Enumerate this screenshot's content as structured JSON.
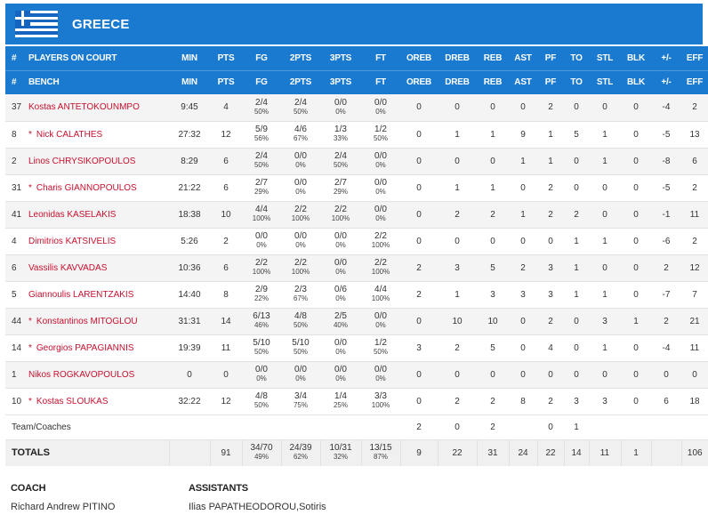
{
  "team": {
    "name": "GREECE"
  },
  "headers_on_court": {
    "num": "#",
    "players": "PLAYERS ON COURT",
    "cols": [
      "MIN",
      "PTS",
      "FG",
      "2PTS",
      "3PTS",
      "FT",
      "OREB",
      "DREB",
      "REB",
      "AST",
      "PF",
      "TO",
      "STL",
      "BLK",
      "+/-",
      "EFF"
    ]
  },
  "headers_bench": {
    "num": "#",
    "players": "BENCH",
    "cols": [
      "MIN",
      "PTS",
      "FG",
      "2PTS",
      "3PTS",
      "FT",
      "OREB",
      "DREB",
      "REB",
      "AST",
      "PF",
      "TO",
      "STL",
      "BLK",
      "+/-",
      "EFF"
    ]
  },
  "players": [
    {
      "num": "37",
      "name": "Kostas ANTETOKOUNMPO",
      "starter": false,
      "min": "9:45",
      "pts": "4",
      "fg": "2/4",
      "fg_pct": "50%",
      "p2": "2/4",
      "p2_pct": "50%",
      "p3": "0/0",
      "p3_pct": "0%",
      "ft": "0/0",
      "ft_pct": "0%",
      "oreb": "0",
      "dreb": "0",
      "reb": "0",
      "ast": "0",
      "pf": "2",
      "to": "0",
      "stl": "0",
      "blk": "0",
      "pm": "-4",
      "eff": "2"
    },
    {
      "num": "8",
      "name": "Nick CALATHES",
      "starter": true,
      "min": "27:32",
      "pts": "12",
      "fg": "5/9",
      "fg_pct": "56%",
      "p2": "4/6",
      "p2_pct": "67%",
      "p3": "1/3",
      "p3_pct": "33%",
      "ft": "1/2",
      "ft_pct": "50%",
      "oreb": "0",
      "dreb": "1",
      "reb": "1",
      "ast": "9",
      "pf": "1",
      "to": "5",
      "stl": "1",
      "blk": "0",
      "pm": "-5",
      "eff": "13"
    },
    {
      "num": "2",
      "name": "Linos CHRYSIKOPOULOS",
      "starter": false,
      "min": "8:29",
      "pts": "6",
      "fg": "2/4",
      "fg_pct": "50%",
      "p2": "0/0",
      "p2_pct": "0%",
      "p3": "2/4",
      "p3_pct": "50%",
      "ft": "0/0",
      "ft_pct": "0%",
      "oreb": "0",
      "dreb": "0",
      "reb": "0",
      "ast": "1",
      "pf": "1",
      "to": "0",
      "stl": "1",
      "blk": "0",
      "pm": "-8",
      "eff": "6"
    },
    {
      "num": "31",
      "name": "Charis GIANNOPOULOS",
      "starter": true,
      "min": "21:22",
      "pts": "6",
      "fg": "2/7",
      "fg_pct": "29%",
      "p2": "0/0",
      "p2_pct": "0%",
      "p3": "2/7",
      "p3_pct": "29%",
      "ft": "0/0",
      "ft_pct": "0%",
      "oreb": "0",
      "dreb": "1",
      "reb": "1",
      "ast": "0",
      "pf": "2",
      "to": "0",
      "stl": "0",
      "blk": "0",
      "pm": "-5",
      "eff": "2"
    },
    {
      "num": "41",
      "name": "Leonidas KASELAKIS",
      "starter": false,
      "min": "18:38",
      "pts": "10",
      "fg": "4/4",
      "fg_pct": "100%",
      "p2": "2/2",
      "p2_pct": "100%",
      "p3": "2/2",
      "p3_pct": "100%",
      "ft": "0/0",
      "ft_pct": "0%",
      "oreb": "0",
      "dreb": "2",
      "reb": "2",
      "ast": "1",
      "pf": "2",
      "to": "2",
      "stl": "0",
      "blk": "0",
      "pm": "-1",
      "eff": "11"
    },
    {
      "num": "4",
      "name": "Dimitrios KATSIVELIS",
      "starter": false,
      "min": "5:26",
      "pts": "2",
      "fg": "0/0",
      "fg_pct": "0%",
      "p2": "0/0",
      "p2_pct": "0%",
      "p3": "0/0",
      "p3_pct": "0%",
      "ft": "2/2",
      "ft_pct": "100%",
      "oreb": "0",
      "dreb": "0",
      "reb": "0",
      "ast": "0",
      "pf": "0",
      "to": "1",
      "stl": "1",
      "blk": "0",
      "pm": "-6",
      "eff": "2"
    },
    {
      "num": "6",
      "name": "Vassilis KAVVADAS",
      "starter": false,
      "min": "10:36",
      "pts": "6",
      "fg": "2/2",
      "fg_pct": "100%",
      "p2": "2/2",
      "p2_pct": "100%",
      "p3": "0/0",
      "p3_pct": "0%",
      "ft": "2/2",
      "ft_pct": "100%",
      "oreb": "2",
      "dreb": "3",
      "reb": "5",
      "ast": "2",
      "pf": "3",
      "to": "1",
      "stl": "0",
      "blk": "0",
      "pm": "2",
      "eff": "12"
    },
    {
      "num": "5",
      "name": "Giannoulis LARENTZAKIS",
      "starter": false,
      "min": "14:40",
      "pts": "8",
      "fg": "2/9",
      "fg_pct": "22%",
      "p2": "2/3",
      "p2_pct": "67%",
      "p3": "0/6",
      "p3_pct": "0%",
      "ft": "4/4",
      "ft_pct": "100%",
      "oreb": "2",
      "dreb": "1",
      "reb": "3",
      "ast": "3",
      "pf": "3",
      "to": "1",
      "stl": "1",
      "blk": "0",
      "pm": "-7",
      "eff": "7"
    },
    {
      "num": "44",
      "name": "Konstantinos MITOGLOU",
      "starter": true,
      "min": "31:31",
      "pts": "14",
      "fg": "6/13",
      "fg_pct": "46%",
      "p2": "4/8",
      "p2_pct": "50%",
      "p3": "2/5",
      "p3_pct": "40%",
      "ft": "0/0",
      "ft_pct": "0%",
      "oreb": "0",
      "dreb": "10",
      "reb": "10",
      "ast": "0",
      "pf": "2",
      "to": "0",
      "stl": "3",
      "blk": "1",
      "pm": "2",
      "eff": "21"
    },
    {
      "num": "14",
      "name": "Georgios PAPAGIANNIS",
      "starter": true,
      "min": "19:39",
      "pts": "11",
      "fg": "5/10",
      "fg_pct": "50%",
      "p2": "5/10",
      "p2_pct": "50%",
      "p3": "0/0",
      "p3_pct": "0%",
      "ft": "1/2",
      "ft_pct": "50%",
      "oreb": "3",
      "dreb": "2",
      "reb": "5",
      "ast": "0",
      "pf": "4",
      "to": "0",
      "stl": "1",
      "blk": "0",
      "pm": "-4",
      "eff": "11"
    },
    {
      "num": "1",
      "name": "Nikos ROGKAVOPOULOS",
      "starter": false,
      "min": "0",
      "pts": "0",
      "fg": "0/0",
      "fg_pct": "0%",
      "p2": "0/0",
      "p2_pct": "0%",
      "p3": "0/0",
      "p3_pct": "0%",
      "ft": "0/0",
      "ft_pct": "0%",
      "oreb": "0",
      "dreb": "0",
      "reb": "0",
      "ast": "0",
      "pf": "0",
      "to": "0",
      "stl": "0",
      "blk": "0",
      "pm": "0",
      "eff": "0"
    },
    {
      "num": "10",
      "name": "Kostas SLOUKAS",
      "starter": true,
      "min": "32:22",
      "pts": "12",
      "fg": "4/8",
      "fg_pct": "50%",
      "p2": "3/4",
      "p2_pct": "75%",
      "p3": "1/4",
      "p3_pct": "25%",
      "ft": "3/3",
      "ft_pct": "100%",
      "oreb": "0",
      "dreb": "2",
      "reb": "2",
      "ast": "8",
      "pf": "2",
      "to": "3",
      "stl": "3",
      "blk": "0",
      "pm": "6",
      "eff": "18"
    }
  ],
  "team_coaches": {
    "label": "Team/Coaches",
    "oreb": "2",
    "dreb": "0",
    "reb": "2",
    "pf": "0",
    "to": "1"
  },
  "totals": {
    "label": "TOTALS",
    "pts": "91",
    "fg": "34/70",
    "fg_pct": "49%",
    "p2": "24/39",
    "p2_pct": "62%",
    "p3": "10/31",
    "p3_pct": "32%",
    "ft": "13/15",
    "ft_pct": "87%",
    "oreb": "9",
    "dreb": "22",
    "reb": "31",
    "ast": "24",
    "pf": "22",
    "to": "14",
    "stl": "11",
    "blk": "1",
    "eff": "106"
  },
  "coach": {
    "label": "COACH",
    "name": "Richard Andrew PITINO"
  },
  "assistants": {
    "label": "ASSISTANTS",
    "names": "Ilias PAPATHEODOROU,Sotiris"
  },
  "colors": {
    "header_blue": "#1a7ad0",
    "name_red": "#c8102e"
  }
}
